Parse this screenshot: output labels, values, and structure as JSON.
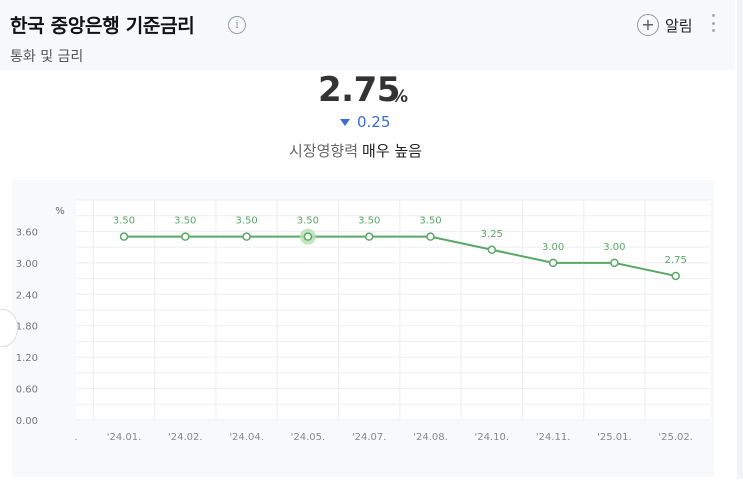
{
  "header": {
    "title": "한국 중앙은행 기준금리",
    "info_icon": "info-icon",
    "subtitle": "통화 및 금리",
    "alarm_label": "알림",
    "alarm_icon": "plus-circle-icon",
    "more_icon": "more-vertical-icon"
  },
  "summary": {
    "value": "2.75",
    "unit": "%",
    "change": "0.25",
    "change_direction": "down",
    "impact_label": "시장영향력",
    "impact_level": "매우 높음"
  },
  "colors": {
    "line": "#5aa865",
    "change": "#3a6bd8",
    "highlight": "#b8e0b2"
  },
  "chart_data": {
    "type": "line",
    "ylabel": "%",
    "yticks": [
      "0.00",
      "0.60",
      "1.20",
      "1.80",
      "2.40",
      "3.00",
      "3.60"
    ],
    "ylim": [
      0,
      4.2
    ],
    "grid": true,
    "categories": [
      "'24.01.",
      "'24.02.",
      "'24.04.",
      "'24.05.",
      "'24.07.",
      "'24.08.",
      "'24.10.",
      "'24.11.",
      "'25.01.",
      "'25.02."
    ],
    "series": [
      {
        "values": [
          3.5,
          3.5,
          3.5,
          3.5,
          3.5,
          3.5,
          3.25,
          3.0,
          3.0,
          2.75
        ],
        "labels": [
          "3.50",
          "3.50",
          "3.50",
          "3.50",
          "3.50",
          "3.50",
          "3.25",
          "3.00",
          "3.00",
          "2.75"
        ]
      }
    ],
    "highlight_index": 3
  }
}
